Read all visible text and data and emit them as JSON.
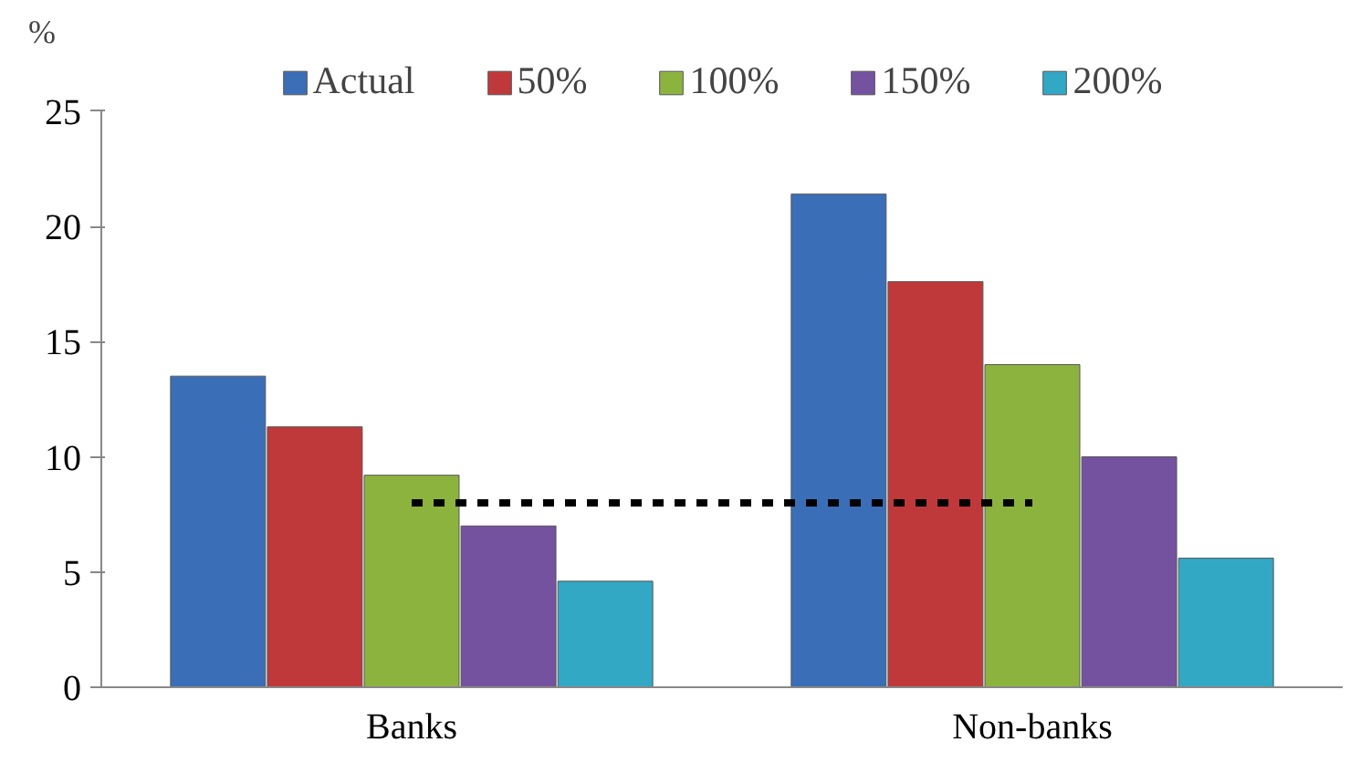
{
  "chart_data": {
    "type": "bar",
    "ylabel": "%",
    "categories": [
      "Banks",
      "Non-banks"
    ],
    "series": [
      {
        "name": "Actual",
        "color": "#3a6fb8",
        "values": [
          13.5,
          21.4
        ]
      },
      {
        "name": "50%",
        "color": "#c0393a",
        "values": [
          11.3,
          17.6
        ]
      },
      {
        "name": "100%",
        "color": "#8db33f",
        "values": [
          9.2,
          14.0
        ]
      },
      {
        "name": "150%",
        "color": "#7452a0",
        "values": [
          7.0,
          10.0
        ]
      },
      {
        "name": "200%",
        "color": "#33a8c4",
        "values": [
          4.6,
          5.6
        ]
      }
    ],
    "ylim": [
      0,
      25
    ],
    "yticks": [
      0,
      5,
      10,
      15,
      20,
      25
    ],
    "grid": false,
    "legend": "top",
    "ref_lines": [
      {
        "axis": "y",
        "value": 8,
        "color": "#000000",
        "line_style": "dashed"
      }
    ]
  }
}
